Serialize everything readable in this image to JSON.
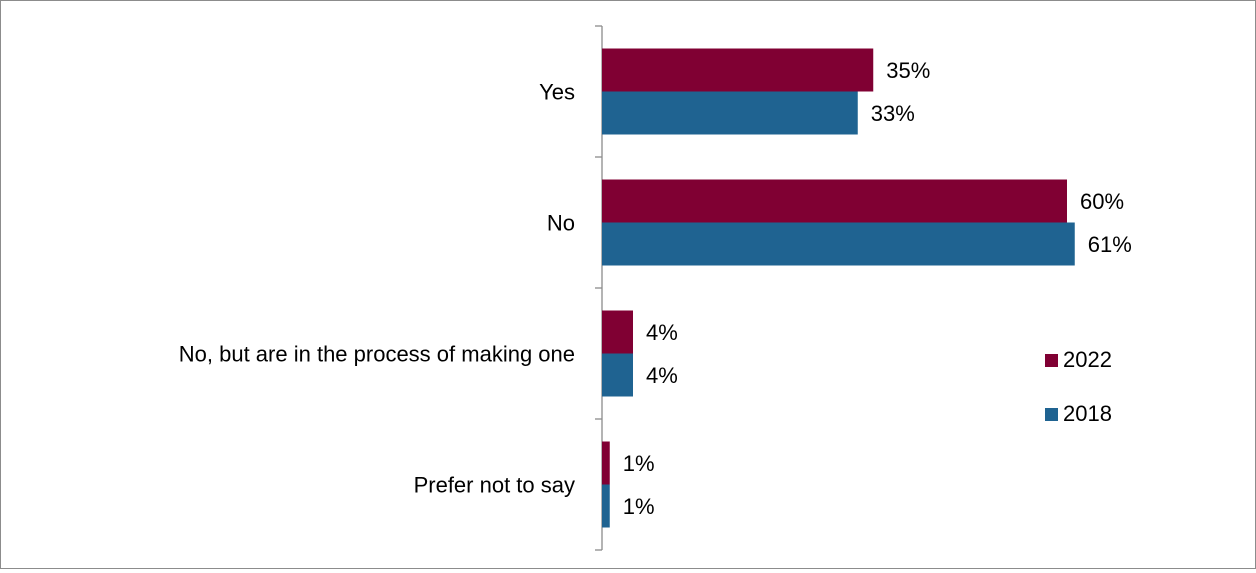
{
  "chart_data": {
    "type": "bar",
    "orientation": "horizontal",
    "categories": [
      "Yes",
      "No",
      "No, but are in the process of making one",
      "Prefer not to say"
    ],
    "series": [
      {
        "name": "2022",
        "values": [
          35,
          60,
          4,
          1
        ],
        "labels": [
          "35%",
          "60%",
          "4%",
          "1%"
        ],
        "color": "#800033"
      },
      {
        "name": "2018",
        "values": [
          33,
          61,
          4,
          1
        ],
        "labels": [
          "33%",
          "61%",
          "4%",
          "1%"
        ],
        "color": "#1F6391"
      }
    ],
    "value_unit": "%",
    "xlim": [
      0,
      100
    ],
    "grid": false,
    "legend_position": "right"
  }
}
